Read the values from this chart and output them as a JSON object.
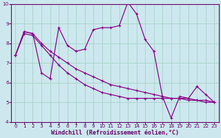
{
  "bg_color": "#cce8ee",
  "grid_color": "#aad4cc",
  "line_color": "#880088",
  "line1_y": [
    7.4,
    8.6,
    8.5,
    6.5,
    6.2,
    8.8,
    7.9,
    7.6,
    7.7,
    8.7,
    8.8,
    8.8,
    8.9,
    10.1,
    9.5,
    8.2,
    7.6,
    5.3,
    4.2,
    5.3,
    5.2,
    5.8,
    5.4,
    5.0
  ],
  "line2_y": [
    7.4,
    8.5,
    8.4,
    7.9,
    7.4,
    6.9,
    6.5,
    6.2,
    5.9,
    5.7,
    5.5,
    5.4,
    5.3,
    5.2,
    5.2,
    5.2,
    5.2,
    5.2,
    5.2,
    5.2,
    5.2,
    5.1,
    5.1,
    5.0
  ],
  "line3_y": [
    7.4,
    8.6,
    8.5,
    8.0,
    7.6,
    7.3,
    7.0,
    6.7,
    6.5,
    6.3,
    6.1,
    5.9,
    5.8,
    5.7,
    5.6,
    5.5,
    5.4,
    5.3,
    5.2,
    5.2,
    5.1,
    5.1,
    5.0,
    5.0
  ],
  "xlim": [
    -0.5,
    23.5
  ],
  "ylim": [
    4,
    10
  ],
  "yticks": [
    4,
    5,
    6,
    7,
    8,
    9,
    10
  ],
  "xticks": [
    0,
    1,
    2,
    3,
    4,
    5,
    6,
    7,
    8,
    9,
    10,
    11,
    12,
    13,
    14,
    15,
    16,
    17,
    18,
    19,
    20,
    21,
    22,
    23
  ],
  "xlabel": "Windchill (Refroidissement éolien,°C)",
  "label_color": "#660066",
  "tick_color": "#660066"
}
